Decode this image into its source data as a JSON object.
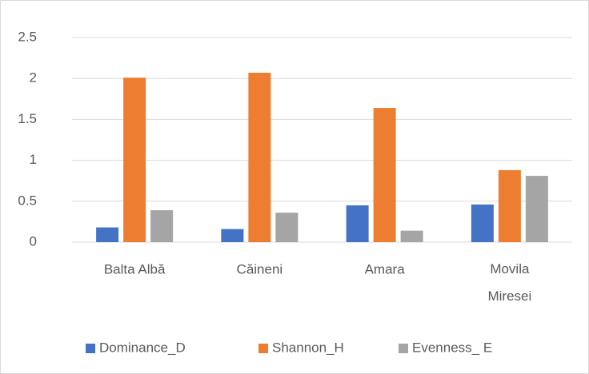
{
  "chart_data": {
    "type": "bar",
    "categories": [
      "Balta Albă",
      "Căineni",
      "Amara",
      "Movila Miresei"
    ],
    "series": [
      {
        "name": "Dominance_D",
        "color": "#4472c4",
        "values": [
          0.18,
          0.16,
          0.45,
          0.46
        ]
      },
      {
        "name": "Shannon_H",
        "color": "#ed7d31",
        "values": [
          2.01,
          2.07,
          1.64,
          0.88
        ]
      },
      {
        "name": "Evenness_ E",
        "color": "#a5a5a5",
        "values": [
          0.39,
          0.36,
          0.14,
          0.81
        ]
      }
    ],
    "ylim": [
      0,
      2.5
    ],
    "yticks": [
      0,
      0.5,
      1,
      1.5,
      2,
      2.5
    ],
    "grid": true,
    "legend": "bottom"
  }
}
